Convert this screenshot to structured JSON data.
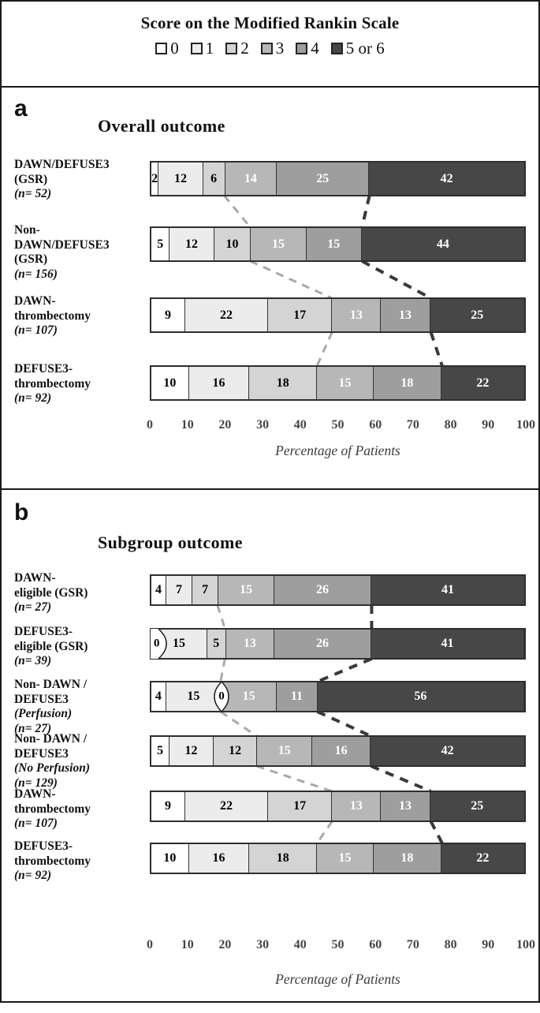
{
  "legend": {
    "title": "Score on the Modified Rankin Scale",
    "items": [
      {
        "label": "0",
        "color": "#ffffff"
      },
      {
        "label": "1",
        "color": "#ececec"
      },
      {
        "label": "2",
        "color": "#d4d4d4"
      },
      {
        "label": "3",
        "color": "#b7b7b7"
      },
      {
        "label": "4",
        "color": "#9e9e9e"
      },
      {
        "label": "5 or 6",
        "color": "#474747"
      }
    ]
  },
  "colors": {
    "segment_fills": [
      "#ffffff",
      "#ececec",
      "#d4d4d4",
      "#b7b7b7",
      "#9e9e9e",
      "#474747"
    ],
    "segment_text": [
      "#000000",
      "#000000",
      "#000000",
      "#ffffff",
      "#ffffff",
      "#ffffff"
    ],
    "light_connector": "#a9a9a9",
    "dark_connector": "#3a3a3a",
    "bar_border": "#2e2e2e"
  },
  "chart_data": [
    {
      "type": "bar",
      "stacked": true,
      "orientation": "horizontal",
      "panel_letter": "a",
      "title": "Overall outcome",
      "series_names": [
        "0",
        "1",
        "2",
        "3",
        "4",
        "5 or 6"
      ],
      "xlabel": "Percentage of Patients",
      "xlim": [
        0,
        100
      ],
      "xticks": [
        "0",
        "10",
        "20",
        "30",
        "40",
        "50",
        "60",
        "70",
        "80",
        "90",
        "100"
      ],
      "grid": false,
      "legend_position": "top-shared",
      "rows": [
        {
          "label_lines": [
            {
              "text": "DAWN/DEFUSE3"
            },
            {
              "text": "(GSR)"
            },
            {
              "text": "(n= 52)",
              "italic": true
            }
          ],
          "values": [
            2,
            12,
            6,
            14,
            25,
            42
          ]
        },
        {
          "label_lines": [
            {
              "text": "Non-"
            },
            {
              "text": "DAWN/DEFUSE3"
            },
            {
              "text": "(GSR)"
            },
            {
              "text": "(n= 156)",
              "italic": true
            }
          ],
          "values": [
            5,
            12,
            10,
            15,
            15,
            44
          ]
        },
        {
          "label_lines": [
            {
              "text": "DAWN-"
            },
            {
              "text": "thrombectomy"
            },
            {
              "text": "(n= 107)",
              "italic": true
            }
          ],
          "values": [
            9,
            22,
            17,
            13,
            13,
            25
          ]
        },
        {
          "label_lines": [
            {
              "text": "DEFUSE3-"
            },
            {
              "text": "thrombectomy"
            },
            {
              "text": "(n= 92)",
              "italic": true
            }
          ],
          "values": [
            10,
            16,
            18,
            15,
            18,
            22
          ]
        }
      ]
    },
    {
      "type": "bar",
      "stacked": true,
      "orientation": "horizontal",
      "panel_letter": "b",
      "title": "Subgroup outcome",
      "series_names": [
        "0",
        "1",
        "2",
        "3",
        "4",
        "5 or 6"
      ],
      "xlabel": "Percentage of Patients",
      "xlim": [
        0,
        100
      ],
      "xticks": [
        "0",
        "10",
        "20",
        "30",
        "40",
        "50",
        "60",
        "70",
        "80",
        "90",
        "100"
      ],
      "grid": false,
      "legend_position": "top-shared",
      "rows": [
        {
          "label_lines": [
            {
              "text": "DAWN-"
            },
            {
              "text": "eligible (GSR)"
            },
            {
              "text": "(n= 27)",
              "italic": true
            }
          ],
          "values": [
            4,
            7,
            7,
            15,
            26,
            41
          ]
        },
        {
          "label_lines": [
            {
              "text": "DEFUSE3-"
            },
            {
              "text": "eligible (GSR)"
            },
            {
              "text": "(n= 39)",
              "italic": true
            }
          ],
          "values": [
            0,
            15,
            5,
            13,
            26,
            41
          ]
        },
        {
          "label_lines": [
            {
              "text": "Non- DAWN /"
            },
            {
              "text": "DEFUSE3"
            },
            {
              "text": "(Perfusion)",
              "italic": true
            },
            {
              "text": "(n= 27)",
              "italic": true
            }
          ],
          "values": [
            4,
            15,
            0,
            15,
            11,
            56
          ]
        },
        {
          "label_lines": [
            {
              "text": "Non- DAWN /"
            },
            {
              "text": "DEFUSE3"
            },
            {
              "text": "(No Perfusion)",
              "italic": true
            },
            {
              "text": "(n= 129)",
              "italic": true
            }
          ],
          "values": [
            5,
            12,
            12,
            15,
            16,
            42
          ]
        },
        {
          "label_lines": [
            {
              "text": "DAWN-"
            },
            {
              "text": "thrombectomy"
            },
            {
              "text": "(n= 107)",
              "italic": true
            }
          ],
          "values": [
            9,
            22,
            17,
            13,
            13,
            25
          ]
        },
        {
          "label_lines": [
            {
              "text": "DEFUSE3-"
            },
            {
              "text": "thrombectomy"
            },
            {
              "text": "(n= 92)",
              "italic": true
            }
          ],
          "values": [
            10,
            16,
            18,
            15,
            18,
            22
          ]
        }
      ]
    }
  ]
}
